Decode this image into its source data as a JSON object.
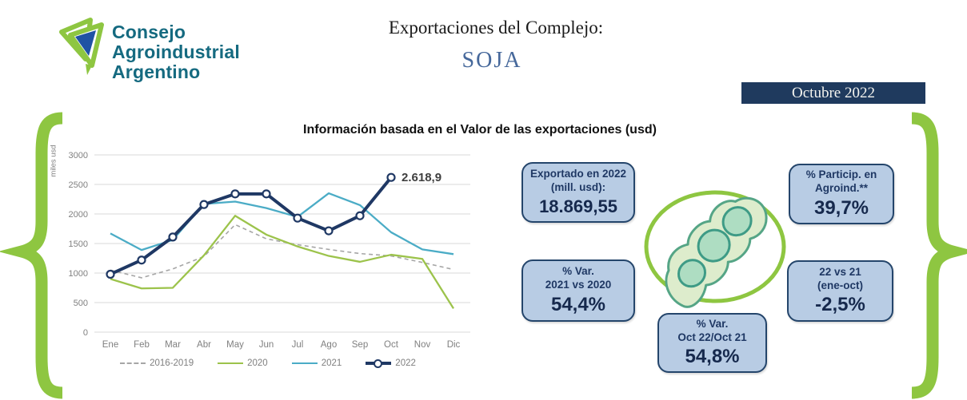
{
  "logo": {
    "line1": "Consejo",
    "line2": "Agroindustrial",
    "line3": "Argentino"
  },
  "header": {
    "title": "Exportaciones del Complejo:",
    "subtitle": "SOJA",
    "date_badge": "Octubre 2022"
  },
  "chart_data": {
    "type": "line",
    "title": "Información basada en el Valor de las exportaciones (usd)",
    "xlabel": "",
    "ylabel": "miles usd",
    "categories": [
      "Ene",
      "Feb",
      "Mar",
      "Abr",
      "May",
      "Jun",
      "Jul",
      "Ago",
      "Sep",
      "Oct",
      "Nov",
      "Dic"
    ],
    "ylim": [
      0,
      3000
    ],
    "ytick_step": 500,
    "grid": true,
    "legend_position": "bottom",
    "series": [
      {
        "name": "2016-2019",
        "color": "#a6a6a6",
        "style": "dashed",
        "values": [
          1050,
          920,
          1070,
          1280,
          1820,
          1580,
          1480,
          1400,
          1330,
          1290,
          1180,
          1060
        ]
      },
      {
        "name": "2020",
        "color": "#9cc34b",
        "style": "solid",
        "values": [
          900,
          740,
          750,
          1300,
          1970,
          1650,
          1450,
          1290,
          1190,
          1310,
          1240,
          400
        ]
      },
      {
        "name": "2021",
        "color": "#4bacc6",
        "style": "solid",
        "values": [
          1670,
          1390,
          1560,
          2170,
          2210,
          2100,
          1950,
          2350,
          2150,
          1690,
          1400,
          1320
        ]
      },
      {
        "name": "2022",
        "color": "#1f3864",
        "style": "solid-markers",
        "values": [
          980,
          1220,
          1610,
          2160,
          2340,
          2340,
          1930,
          1715,
          1970,
          2618.9
        ]
      }
    ],
    "annotation": {
      "text": "2.618,9",
      "series": "2022",
      "index": 9
    }
  },
  "stats": {
    "exported": {
      "line1": "Exportado en 2022",
      "line2": "(mill. usd):",
      "value": "18.869,55"
    },
    "var_2021_2020": {
      "line1": "% Var.",
      "line2": "2021 vs 2020",
      "value": "54,4%"
    },
    "particip": {
      "line1": "% Particip. en",
      "line2": "Agroind.**",
      "value": "39,7%"
    },
    "var_22_21": {
      "line1": "22 vs 21",
      "line2": "(ene-oct)",
      "value": "-2,5%"
    },
    "var_oct": {
      "line1": "% Var.",
      "line2": "Oct 22/Oct 21",
      "value": "54,8%"
    }
  },
  "colors": {
    "brand_green": "#8ec641",
    "logo_teal": "#156a80",
    "logo_blue": "#2053a4",
    "navy": "#1f3864",
    "teal": "#4bacc6",
    "green_series": "#9cc34b",
    "gray_series": "#a6a6a6",
    "badge_bg": "#1f3a5e",
    "subtitle_blue": "#46689b",
    "box_bg": "#b8cce4",
    "box_border": "#24456b"
  }
}
